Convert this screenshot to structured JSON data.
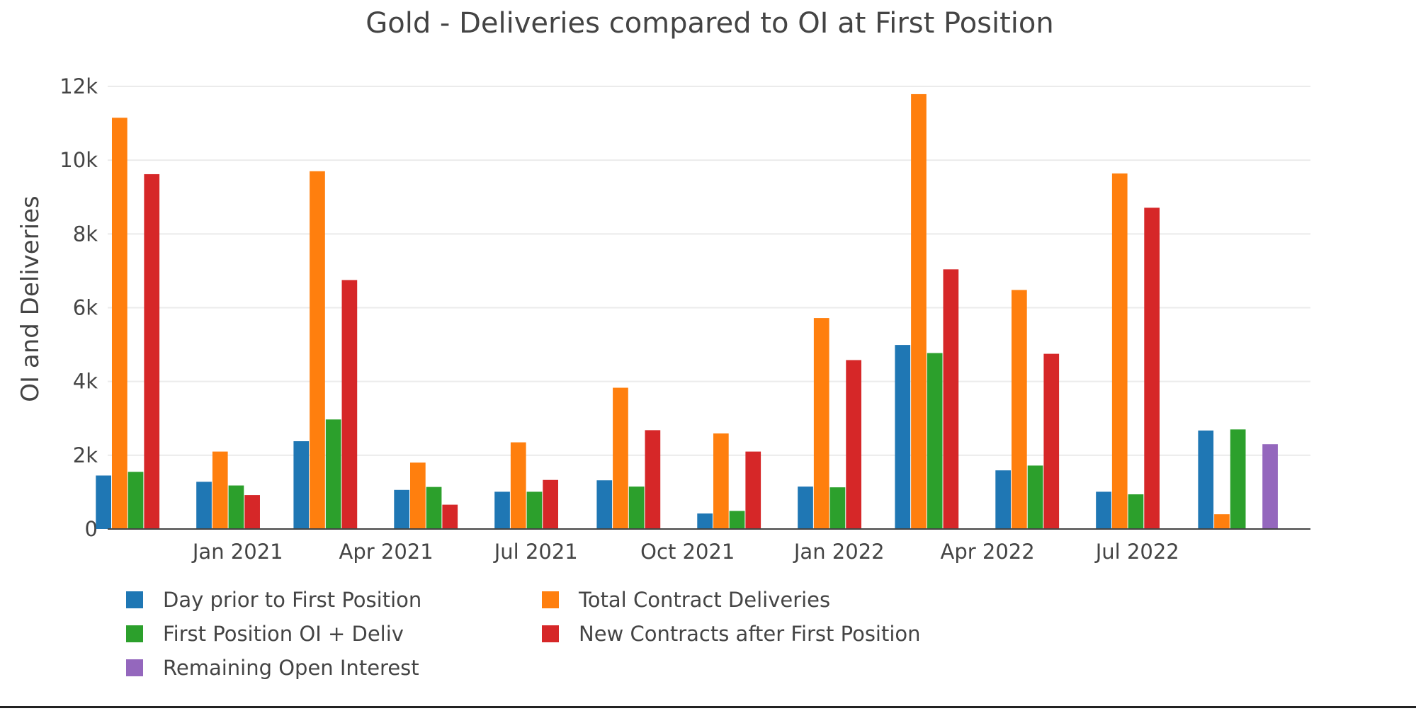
{
  "chart_data": {
    "type": "bar",
    "title": "Gold - Deliveries compared to OI at First Position",
    "xlabel": "",
    "ylabel": "OI and Deliveries",
    "ylim": [
      0,
      12000
    ],
    "yticks": [
      0,
      2000,
      4000,
      6000,
      8000,
      10000,
      12000
    ],
    "yticklabels": [
      "0",
      "2k",
      "4k",
      "6k",
      "8k",
      "10k",
      "12k"
    ],
    "xlim": [
      "2020-10-14",
      "2022-10-14"
    ],
    "xticks": [
      {
        "date": "2021-01-01",
        "label": "Jan 2021"
      },
      {
        "date": "2021-04-01",
        "label": "Apr 2021"
      },
      {
        "date": "2021-07-01",
        "label": "Jul 2021"
      },
      {
        "date": "2021-10-01",
        "label": "Oct 2021"
      },
      {
        "date": "2022-01-01",
        "label": "Jan 2022"
      },
      {
        "date": "2022-04-01",
        "label": "Apr 2022"
      },
      {
        "date": "2022-07-01",
        "label": "Jul 2022"
      }
    ],
    "categories": [
      "2020-10-31",
      "2020-12-31",
      "2021-02-28",
      "2021-04-30",
      "2021-06-30",
      "2021-08-31",
      "2021-10-31",
      "2021-12-31",
      "2022-02-28",
      "2022-04-30",
      "2022-06-30",
      "2022-08-31"
    ],
    "grid": true,
    "legend_position": "bottom",
    "series": [
      {
        "name": "Day prior to First Position",
        "color": "#1f77b4",
        "values": [
          1450,
          1280,
          2380,
          1060,
          1010,
          1320,
          420,
          1150,
          4990,
          1590,
          1010,
          2670
        ]
      },
      {
        "name": "Total Contract Deliveries",
        "color": "#ff7f0e",
        "values": [
          11150,
          2100,
          9700,
          1800,
          2350,
          3830,
          2590,
          5720,
          11790,
          6480,
          9640,
          400
        ]
      },
      {
        "name": "First Position OI + Deliv",
        "color": "#2ca02c",
        "values": [
          1550,
          1180,
          2970,
          1140,
          1010,
          1150,
          490,
          1130,
          4770,
          1720,
          940,
          2700
        ]
      },
      {
        "name": "New Contracts after First Position",
        "color": "#d62728",
        "values": [
          9620,
          920,
          6750,
          660,
          1330,
          2680,
          2100,
          4580,
          7040,
          4750,
          8710,
          null
        ]
      },
      {
        "name": "Remaining Open Interest",
        "color": "#9467bd",
        "values": [
          null,
          null,
          null,
          null,
          null,
          null,
          null,
          null,
          null,
          null,
          null,
          2300
        ]
      }
    ]
  }
}
